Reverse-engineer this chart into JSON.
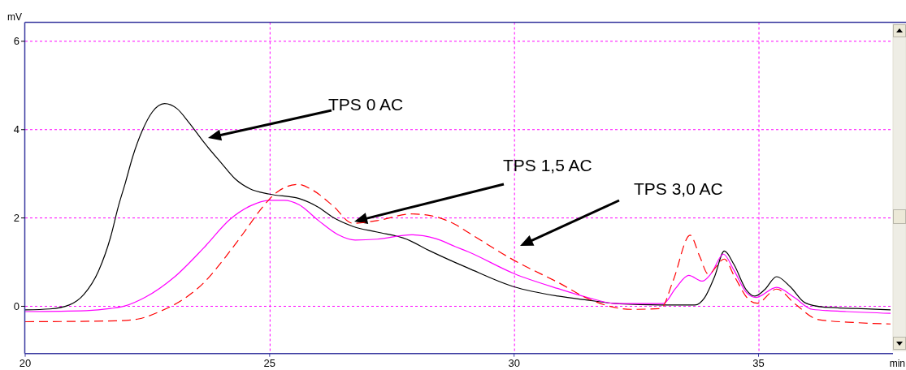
{
  "chart_data": {
    "type": "line",
    "xlabel": "min",
    "ylabel": "mV",
    "xlim": [
      20,
      37.75
    ],
    "ylim": [
      -1.07,
      6.43
    ],
    "xticks": [
      20,
      25,
      30,
      35
    ],
    "yticks": [
      0,
      2,
      4,
      6
    ],
    "grid": true,
    "annotations": [
      "TPS 0 AC",
      "TPS 1,5 AC",
      "TPS 3,0 AC"
    ],
    "series": [
      {
        "color": "#000000",
        "x": [
          20,
          20.5,
          20.9,
          21.2,
          21.5,
          21.75,
          21.9,
          22.05,
          22.2,
          22.4,
          22.6,
          22.85,
          23.1,
          23.35,
          23.65,
          24.0,
          24.3,
          24.6,
          25.0,
          25.6,
          26.0,
          26.3,
          26.7,
          27.2,
          27.8,
          28.25,
          28.8,
          29.05,
          30.0,
          30.9,
          31.5,
          32.1,
          33.0,
          33.7,
          33.9,
          34.1,
          34.3,
          34.5,
          34.75,
          34.92,
          35.12,
          35.37,
          35.65,
          35.95,
          36.35,
          37.0,
          37.7
        ],
        "values": [
          -0.08,
          -0.06,
          0.03,
          0.27,
          0.8,
          1.58,
          2.24,
          2.8,
          3.39,
          3.99,
          4.4,
          4.59,
          4.48,
          4.16,
          3.72,
          3.26,
          2.88,
          2.66,
          2.54,
          2.44,
          2.24,
          2.01,
          1.81,
          1.68,
          1.52,
          1.27,
          0.99,
          0.87,
          0.44,
          0.23,
          0.14,
          0.06,
          0.03,
          0.03,
          0.2,
          0.67,
          1.25,
          0.94,
          0.37,
          0.23,
          0.37,
          0.67,
          0.44,
          0.08,
          -0.02,
          -0.05,
          -0.08
        ]
      },
      {
        "color": "#ff00ff",
        "x": [
          20,
          21.25,
          21.75,
          22.05,
          22.45,
          23.05,
          23.65,
          24.2,
          24.6,
          25.0,
          25.3,
          25.6,
          26.0,
          26.4,
          26.75,
          27.2,
          27.9,
          28.4,
          28.8,
          29.05,
          30.0,
          30.9,
          31.5,
          32.1,
          33.05,
          33.3,
          33.57,
          33.85,
          34.03,
          34.28,
          34.5,
          34.76,
          34.95,
          35.37,
          35.73,
          36.1,
          36.8,
          37.7
        ],
        "values": [
          -0.12,
          -0.1,
          -0.05,
          0.01,
          0.2,
          0.66,
          1.32,
          1.98,
          2.27,
          2.4,
          2.4,
          2.3,
          1.94,
          1.62,
          1.5,
          1.52,
          1.62,
          1.53,
          1.35,
          1.24,
          0.74,
          0.4,
          0.2,
          0.06,
          0.06,
          0.4,
          0.7,
          0.57,
          0.74,
          1.18,
          0.81,
          0.3,
          0.2,
          0.43,
          0.2,
          -0.07,
          -0.12,
          -0.16
        ]
      },
      {
        "color": "#ff0000",
        "line_style": "dashed",
        "x": [
          20,
          21.85,
          22.3,
          22.75,
          23.15,
          23.65,
          24.1,
          24.5,
          24.8,
          25.17,
          25.58,
          25.88,
          26.3,
          26.7,
          27.2,
          27.9,
          28.3,
          28.8,
          29.05,
          30.0,
          30.9,
          31.6,
          32.4,
          33.0,
          33.25,
          33.6,
          33.8,
          33.97,
          34.3,
          34.51,
          34.82,
          34.97,
          35.37,
          35.75,
          36.22,
          37.0,
          37.7
        ],
        "values": [
          -0.35,
          -0.33,
          -0.29,
          -0.12,
          0.1,
          0.53,
          1.12,
          1.71,
          2.17,
          2.6,
          2.76,
          2.63,
          2.27,
          1.88,
          1.94,
          2.09,
          2.05,
          1.85,
          1.68,
          1.04,
          0.54,
          0.13,
          -0.07,
          -0.05,
          0.57,
          1.61,
          1.12,
          0.73,
          1.07,
          0.67,
          0.13,
          0.07,
          0.39,
          0.05,
          -0.3,
          -0.37,
          -0.4
        ]
      }
    ]
  }
}
